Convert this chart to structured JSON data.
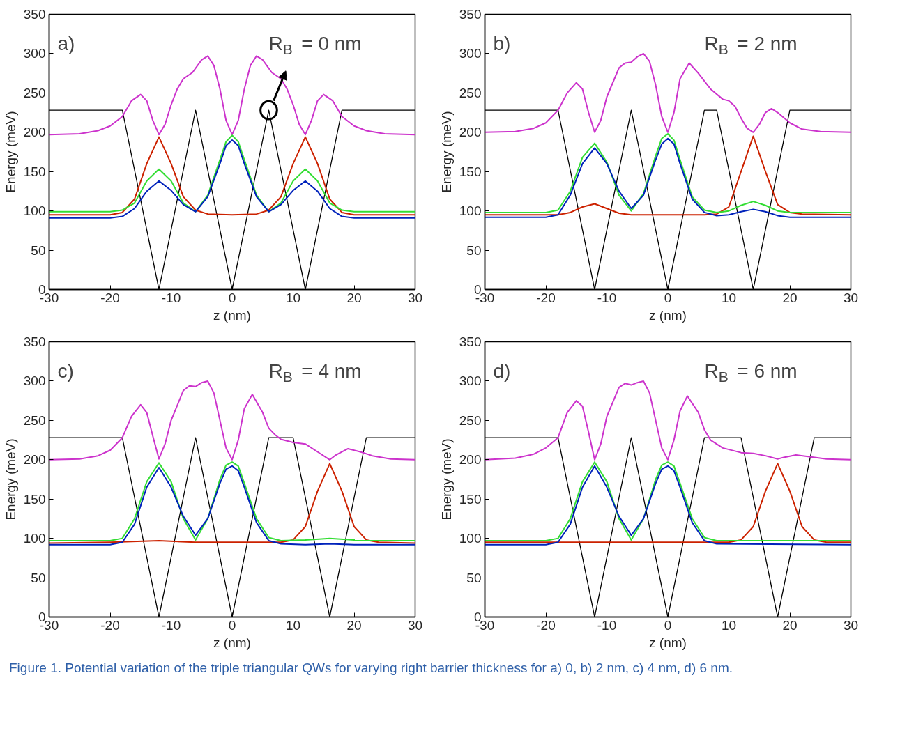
{
  "chart_data": [
    {
      "type": "line",
      "xlabel": "z (nm)",
      "ylabel": "Energy (meV)",
      "xlim": [
        -30,
        30
      ],
      "xticks": [
        -30,
        -20,
        -10,
        0,
        10,
        20,
        30
      ],
      "ylim": [
        0,
        350
      ],
      "yticks": [
        0,
        50,
        100,
        150,
        200,
        250,
        300,
        350
      ],
      "grid": false,
      "marker": "none",
      "line_style": "solid",
      "annotations": [
        "a)",
        {
          "text": "R$_{B}$ = 0 nm",
          "x": 6,
          "y": 228
        }
      ],
      "series": [
        {
          "color": "#000000",
          "x": [
            -30,
            -18,
            -12,
            -6,
            0,
            6,
            12,
            18,
            30
          ],
          "values": [
            228,
            228,
            0,
            228,
            0,
            228,
            0,
            228,
            228
          ]
        },
        {
          "color": "#cc33cc",
          "x": [
            -30,
            -25,
            -22,
            -20,
            -18,
            -16.5,
            -15,
            -14,
            -13,
            -12,
            -11,
            -10,
            -9,
            -8,
            -6.5,
            -5,
            -4,
            -3,
            -2,
            -1,
            0,
            1,
            2,
            3,
            4,
            5,
            6.5,
            8,
            9,
            10,
            11,
            12,
            13,
            14,
            15,
            16.5,
            18,
            20,
            22,
            25,
            30
          ],
          "values": [
            197,
            198,
            202,
            208,
            220,
            240,
            248,
            240,
            215,
            197,
            210,
            235,
            255,
            268,
            276,
            292,
            297,
            285,
            255,
            215,
            197,
            215,
            255,
            285,
            297,
            292,
            276,
            268,
            255,
            235,
            210,
            197,
            215,
            240,
            248,
            240,
            220,
            208,
            202,
            198,
            197
          ]
        },
        {
          "color": "#cc2200",
          "x": [
            -30,
            -20,
            -18,
            -16,
            -14,
            -12,
            -10,
            -8,
            -6,
            -4,
            0,
            4,
            6,
            8,
            10,
            12,
            14,
            16,
            18,
            20,
            30
          ],
          "values": [
            95,
            95,
            98,
            115,
            160,
            194,
            160,
            118,
            101,
            96,
            95,
            96,
            101,
            118,
            160,
            194,
            160,
            115,
            98,
            95,
            95
          ]
        },
        {
          "color": "#33dd33",
          "x": [
            -30,
            -20,
            -18,
            -16,
            -14,
            -12,
            -10,
            -8,
            -6,
            -4,
            -2,
            -1,
            0,
            1,
            2,
            4,
            6,
            8,
            10,
            12,
            14,
            16,
            18,
            20,
            30
          ],
          "values": [
            99,
            99,
            101,
            110,
            138,
            153,
            138,
            110,
            99,
            120,
            165,
            188,
            196,
            188,
            165,
            120,
            99,
            110,
            138,
            153,
            138,
            110,
            101,
            99,
            99
          ]
        },
        {
          "color": "#0022bb",
          "x": [
            -30,
            -20,
            -18,
            -16,
            -14,
            -12,
            -10,
            -8,
            -6,
            -4,
            -2,
            -1,
            0,
            1,
            2,
            4,
            6,
            8,
            10,
            12,
            14,
            16,
            18,
            20,
            30
          ],
          "values": [
            91,
            91,
            93,
            103,
            125,
            138,
            126,
            108,
            99,
            118,
            160,
            183,
            190,
            183,
            160,
            118,
            99,
            108,
            126,
            138,
            125,
            103,
            93,
            91,
            91
          ]
        }
      ]
    },
    {
      "type": "line",
      "xlabel": "z (nm)",
      "ylabel": "Energy (meV)",
      "xlim": [
        -30,
        30
      ],
      "xticks": [
        -30,
        -20,
        -10,
        0,
        10,
        20,
        30
      ],
      "ylim": [
        0,
        350
      ],
      "yticks": [
        0,
        50,
        100,
        150,
        200,
        250,
        300,
        350
      ],
      "grid": false,
      "marker": "none",
      "line_style": "solid",
      "annotations": [
        "b)",
        "R$_{B}$ = 2 nm"
      ],
      "series": [
        {
          "color": "#000000",
          "x": [
            -30,
            -18,
            -12,
            -6,
            0,
            6,
            8,
            14,
            20,
            30
          ],
          "values": [
            228,
            228,
            0,
            228,
            0,
            228,
            228,
            0,
            228,
            228
          ]
        },
        {
          "color": "#cc33cc",
          "x": [
            -30,
            -25,
            -22,
            -20,
            -18,
            -16.5,
            -15,
            -14,
            -13,
            -12,
            -11,
            -10,
            -8,
            -7,
            -6,
            -5,
            -4,
            -3,
            -2,
            -1,
            0,
            1,
            2,
            3.5,
            5,
            7,
            9,
            10,
            11,
            12,
            13,
            14,
            15,
            16,
            17,
            18,
            20,
            22,
            25,
            30
          ],
          "values": [
            200,
            201,
            205,
            212,
            228,
            250,
            263,
            255,
            225,
            200,
            215,
            245,
            282,
            288,
            289,
            296,
            300,
            290,
            260,
            220,
            200,
            225,
            268,
            288,
            275,
            255,
            242,
            240,
            233,
            218,
            205,
            200,
            210,
            225,
            230,
            225,
            212,
            204,
            201,
            200
          ]
        },
        {
          "color": "#cc2200",
          "x": [
            -30,
            -18,
            -16,
            -14,
            -12,
            -10,
            -8,
            -6,
            6,
            8,
            10,
            12,
            14,
            16,
            18,
            20,
            22,
            30
          ],
          "values": [
            95,
            95,
            98,
            105,
            109,
            103,
            97,
            95,
            95,
            96,
            105,
            150,
            195,
            150,
            108,
            98,
            96,
            95
          ]
        },
        {
          "color": "#33dd33",
          "x": [
            -30,
            -20,
            -18,
            -16,
            -14,
            -12,
            -10,
            -8,
            -6,
            -4,
            -2,
            -1,
            0,
            1,
            2,
            4,
            6,
            8,
            10,
            12,
            14,
            16,
            18,
            20,
            30
          ],
          "values": [
            98,
            98,
            101,
            125,
            168,
            186,
            162,
            120,
            100,
            122,
            170,
            192,
            198,
            190,
            165,
            118,
            101,
            98,
            100,
            107,
            112,
            107,
            100,
            98,
            98
          ]
        },
        {
          "color": "#0022bb",
          "x": [
            -30,
            -20,
            -18,
            -16,
            -14,
            -12,
            -10,
            -8,
            -6,
            -4,
            -2,
            -1,
            0,
            1,
            2,
            4,
            6,
            8,
            10,
            12,
            14,
            16,
            18,
            20,
            30
          ],
          "values": [
            92,
            92,
            95,
            120,
            160,
            180,
            160,
            125,
            103,
            120,
            165,
            185,
            192,
            185,
            160,
            115,
            98,
            94,
            95,
            99,
            102,
            99,
            94,
            92,
            92
          ]
        }
      ]
    },
    {
      "type": "line",
      "xlabel": "z (nm)",
      "ylabel": "Energy (meV)",
      "xlim": [
        -30,
        30
      ],
      "xticks": [
        -30,
        -20,
        -10,
        0,
        10,
        20,
        30
      ],
      "ylim": [
        0,
        350
      ],
      "yticks": [
        0,
        50,
        100,
        150,
        200,
        250,
        300,
        350
      ],
      "grid": false,
      "marker": "none",
      "line_style": "solid",
      "annotations": [
        "c)",
        "R$_{B}$ = 4 nm"
      ],
      "series": [
        {
          "color": "#000000",
          "x": [
            -30,
            -18,
            -12,
            -6,
            0,
            6,
            10,
            16,
            22,
            30
          ],
          "values": [
            228,
            228,
            0,
            228,
            0,
            228,
            228,
            0,
            228,
            228
          ]
        },
        {
          "color": "#cc33cc",
          "x": [
            -30,
            -25,
            -22,
            -20,
            -18,
            -16.5,
            -15,
            -14,
            -13,
            -12,
            -11,
            -10,
            -8,
            -7,
            -6,
            -5,
            -4,
            -3,
            -2,
            -1,
            0,
            1,
            2,
            3.3,
            5,
            6,
            7,
            8,
            10,
            12,
            14,
            16,
            17,
            19,
            21,
            23,
            26,
            30
          ],
          "values": [
            200,
            201,
            205,
            212,
            228,
            255,
            270,
            260,
            230,
            201,
            220,
            250,
            288,
            294,
            293,
            298,
            300,
            285,
            250,
            215,
            200,
            225,
            265,
            283,
            260,
            240,
            232,
            226,
            222,
            220,
            210,
            200,
            206,
            214,
            210,
            205,
            201,
            200
          ]
        },
        {
          "color": "#cc2200",
          "x": [
            -30,
            -20,
            -12,
            -6,
            8,
            10,
            12,
            14,
            16,
            18,
            20,
            22,
            24,
            30
          ],
          "values": [
            94,
            95,
            97,
            95,
            95,
            98,
            115,
            160,
            195,
            160,
            115,
            98,
            95,
            94
          ]
        },
        {
          "color": "#33dd33",
          "x": [
            -30,
            -20,
            -18,
            -16,
            -14,
            -12,
            -10,
            -8,
            -6,
            -4,
            -2,
            -1,
            0,
            1,
            2,
            4,
            6,
            8,
            12,
            16,
            20,
            30
          ],
          "values": [
            97,
            97,
            100,
            125,
            172,
            196,
            172,
            125,
            98,
            125,
            175,
            193,
            197,
            192,
            170,
            125,
            101,
            97,
            98,
            100,
            98,
            97
          ]
        },
        {
          "color": "#0022bb",
          "x": [
            -30,
            -20,
            -18,
            -16,
            -14,
            -12,
            -10,
            -8,
            -6,
            -4,
            -2,
            -1,
            0,
            1,
            2,
            4,
            6,
            8,
            12,
            16,
            20,
            30
          ],
          "values": [
            92,
            92,
            95,
            118,
            165,
            190,
            165,
            128,
            104,
            125,
            170,
            188,
            192,
            186,
            165,
            120,
            97,
            93,
            92,
            93,
            92,
            92
          ]
        }
      ]
    },
    {
      "type": "line",
      "xlabel": "z (nm)",
      "ylabel": "Energy (meV)",
      "xlim": [
        -30,
        30
      ],
      "xticks": [
        -30,
        -20,
        -10,
        0,
        10,
        20,
        30
      ],
      "ylim": [
        0,
        350
      ],
      "yticks": [
        0,
        50,
        100,
        150,
        200,
        250,
        300,
        350
      ],
      "grid": false,
      "marker": "none",
      "line_style": "solid",
      "annotations": [
        "d)",
        "R$_{B}$ = 6 nm",
        "Figure 1. Potential variation of the triple triangular QWs for varying right barrier thickness for a) 0, b) 2 nm, c) 4 nm, d) 6 nm."
      ],
      "series": [
        {
          "color": "#000000",
          "x": [
            -30,
            -18,
            -12,
            -6,
            0,
            6,
            12,
            18,
            24,
            30
          ],
          "values": [
            228,
            228,
            0,
            228,
            0,
            228,
            228,
            0,
            228,
            228
          ]
        },
        {
          "color": "#cc33cc",
          "x": [
            -30,
            -25,
            -22,
            -20,
            -18,
            -16.5,
            -15,
            -14,
            -13,
            -12,
            -11,
            -10,
            -8,
            -7,
            -6,
            -5,
            -4,
            -3,
            -2,
            -1,
            0,
            1,
            2,
            3.2,
            5,
            6,
            7,
            9,
            12,
            14,
            16,
            18,
            19,
            21,
            23,
            26,
            30
          ],
          "values": [
            200,
            202,
            207,
            215,
            228,
            260,
            275,
            268,
            235,
            200,
            220,
            255,
            292,
            297,
            295,
            298,
            300,
            285,
            250,
            215,
            200,
            225,
            262,
            281,
            260,
            238,
            225,
            215,
            209,
            208,
            205,
            201,
            203,
            206,
            204,
            201,
            200
          ]
        },
        {
          "color": "#cc2200",
          "x": [
            -30,
            10,
            12,
            14,
            16,
            18,
            20,
            22,
            24,
            26,
            30
          ],
          "values": [
            95,
            95,
            98,
            115,
            160,
            195,
            160,
            115,
            98,
            95,
            95
          ]
        },
        {
          "color": "#33dd33",
          "x": [
            -30,
            -20,
            -18,
            -16,
            -14,
            -12,
            -10,
            -8,
            -6,
            -4,
            -2,
            -1,
            0,
            1,
            2,
            4,
            6,
            8,
            30
          ],
          "values": [
            97,
            97,
            100,
            125,
            172,
            197,
            172,
            125,
            98,
            125,
            175,
            193,
            197,
            192,
            170,
            125,
            101,
            97,
            97
          ]
        },
        {
          "color": "#0022bb",
          "x": [
            -30,
            -20,
            -18,
            -16,
            -14,
            -12,
            -10,
            -8,
            -6,
            -4,
            -2,
            -1,
            0,
            1,
            2,
            4,
            6,
            8,
            30
          ],
          "values": [
            92,
            92,
            95,
            118,
            165,
            192,
            165,
            128,
            104,
            125,
            170,
            188,
            192,
            186,
            165,
            120,
            97,
            93,
            92
          ]
        }
      ]
    }
  ]
}
